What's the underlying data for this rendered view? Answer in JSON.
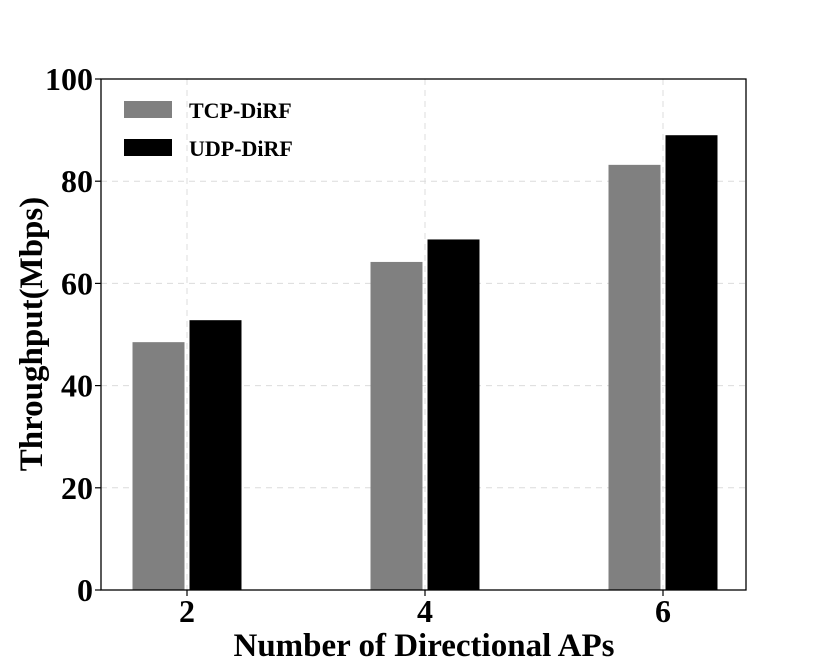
{
  "chart_data": {
    "type": "bar",
    "title": "",
    "xlabel": "Number of Directional APs",
    "ylabel": "Throughput(Mbps)",
    "categories": [
      "2",
      "4",
      "6"
    ],
    "series": [
      {
        "name": "TCP-DiRF",
        "values": [
          48.5,
          64.2,
          83.2
        ],
        "color": "#808080"
      },
      {
        "name": "UDP-DiRF",
        "values": [
          52.8,
          68.6,
          89.0
        ],
        "color": "#000000"
      }
    ],
    "ylim": [
      0,
      100
    ],
    "yticks": [
      "0",
      "20",
      "40",
      "60",
      "80",
      "100"
    ],
    "grid": true,
    "legend_position": "top-left"
  }
}
